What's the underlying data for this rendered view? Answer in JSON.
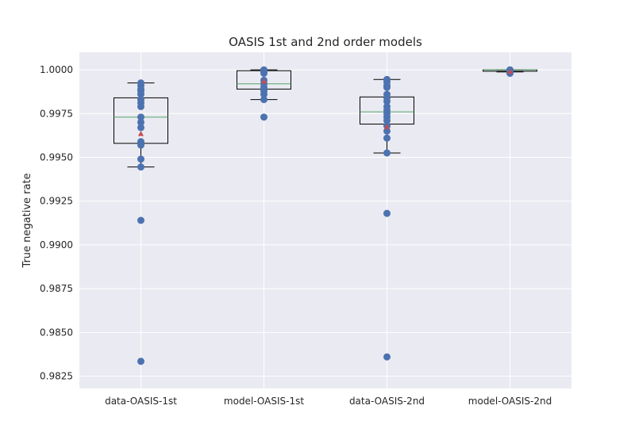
{
  "chart_data": {
    "type": "box",
    "title": "OASIS 1st and 2nd order models",
    "xlabel": "",
    "ylabel": "True negative rate",
    "ylim": [
      0.9818,
      1.001
    ],
    "yticks": [
      0.9825,
      0.985,
      0.9875,
      0.99,
      0.9925,
      0.995,
      0.9975,
      1.0
    ],
    "ytick_labels": [
      "0.9825",
      "0.9850",
      "0.9875",
      "0.9900",
      "0.9925",
      "0.9950",
      "0.9975",
      "1.0000"
    ],
    "grid": true,
    "categories": [
      "data-OASIS-1st",
      "model-OASIS-1st",
      "data-OASIS-2nd",
      "model-OASIS-2nd"
    ],
    "boxes": [
      {
        "q1": 0.9958,
        "median": 0.9973,
        "q3": 0.9984,
        "whisker_low": 0.99445,
        "whisker_high": 0.99925,
        "mean": 0.99635
      },
      {
        "q1": 0.9989,
        "median": 0.9992,
        "q3": 0.99995,
        "whisker_low": 0.9983,
        "whisker_high": 1.0,
        "mean": 0.99935
      },
      {
        "q1": 0.9969,
        "median": 0.9976,
        "q3": 0.99845,
        "whisker_low": 0.99525,
        "whisker_high": 0.99945,
        "mean": 0.99675
      },
      {
        "q1": 0.99992,
        "median": 1.0,
        "q3": 1.0,
        "whisker_low": 0.99988,
        "whisker_high": 1.0,
        "mean": 0.9999
      }
    ],
    "points": [
      [
        0.99925,
        0.9991,
        0.9989,
        0.9988,
        0.9986,
        0.9983,
        0.9981,
        0.9979,
        0.9973,
        0.997,
        0.9967,
        0.9959,
        0.9957,
        0.9949,
        0.99445,
        0.9914,
        0.98335
      ],
      [
        1.0,
        0.99995,
        0.9999,
        0.9998,
        0.9994,
        0.9992,
        0.999,
        0.9988,
        0.9986,
        0.9983,
        0.9973
      ],
      [
        0.99945,
        0.9993,
        0.9991,
        0.999,
        0.9986,
        0.9984,
        0.9982,
        0.9979,
        0.9977,
        0.9975,
        0.9973,
        0.9971,
        0.9968,
        0.9965,
        0.9961,
        0.99525,
        0.9918,
        0.9836
      ],
      [
        1.0,
        0.99995,
        0.9999,
        0.99985,
        0.9998
      ]
    ],
    "colors": {
      "background": "#EAEAF2",
      "grid": "#FFFFFF",
      "points": "#4C72B0",
      "median": "#55A868",
      "mean": "#C44E52",
      "box": "#000000"
    }
  }
}
